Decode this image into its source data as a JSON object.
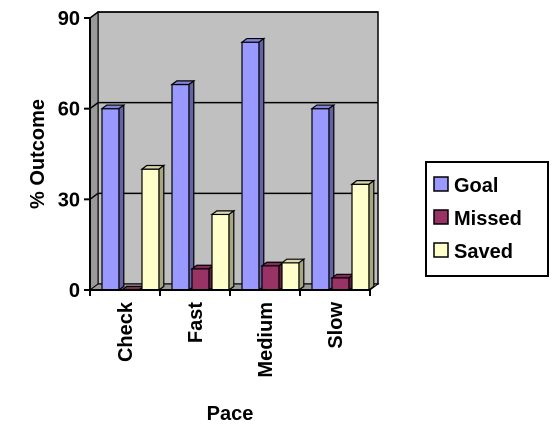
{
  "chart_data": {
    "type": "bar",
    "title": "",
    "xlabel": "Pace",
    "ylabel": "% Outcome",
    "categories": [
      "Check",
      "Fast",
      "Medium",
      "Slow"
    ],
    "series": [
      {
        "name": "Goal",
        "values": [
          60,
          68,
          82,
          60
        ],
        "color": "#9999ff"
      },
      {
        "name": "Missed",
        "values": [
          0,
          7,
          8,
          4
        ],
        "color": "#993366"
      },
      {
        "name": "Saved",
        "values": [
          40,
          25,
          9,
          35
        ],
        "color": "#ffffcc"
      }
    ],
    "yticks": [
      "0",
      "30",
      "60",
      "90"
    ],
    "ylim": [
      0,
      90
    ],
    "grid": true,
    "plot_background": "#c0c0c0",
    "legend_position": "right",
    "style": "3d-clustered-column"
  }
}
